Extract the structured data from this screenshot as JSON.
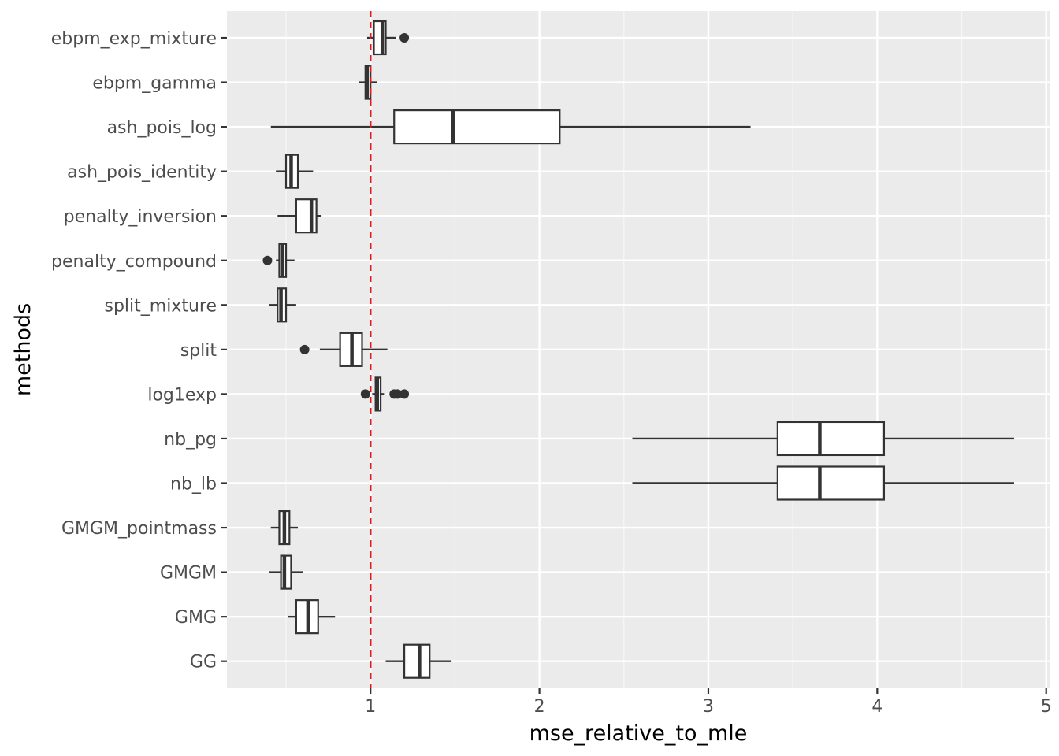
{
  "chart_data": {
    "type": "boxplot",
    "orientation": "horizontal",
    "xlabel": "mse_relative_to_mle",
    "ylabel": "methods",
    "xlim": [
      0.15,
      5.02
    ],
    "x_ticks": [
      1,
      2,
      3,
      4,
      5
    ],
    "x_minor_ticks": [
      0.5,
      1.5,
      2.5,
      3.5,
      4.5
    ],
    "grid": true,
    "reference_line": {
      "x": 1,
      "color": "#e31a1c",
      "style": "dashed"
    },
    "categories": [
      "ebpm_exp_mixture",
      "ebpm_gamma",
      "ash_pois_log",
      "ash_pois_identity",
      "penalty_inversion",
      "penalty_compound",
      "split_mixture",
      "split",
      "log1exp",
      "nb_pg",
      "nb_lb",
      "GMGM_pointmass",
      "GMGM",
      "GMG",
      "GG"
    ],
    "series": [
      {
        "name": "ebpm_exp_mixture",
        "whisker_low": 0.98,
        "q1": 1.02,
        "median": 1.07,
        "q3": 1.09,
        "whisker_high": 1.15,
        "outliers": [
          1.2
        ]
      },
      {
        "name": "ebpm_gamma",
        "whisker_low": 0.93,
        "q1": 0.97,
        "median": 0.98,
        "q3": 1.0,
        "whisker_high": 1.04,
        "outliers": []
      },
      {
        "name": "ash_pois_log",
        "whisker_low": 0.41,
        "q1": 1.14,
        "median": 1.49,
        "q3": 2.12,
        "whisker_high": 3.25,
        "outliers": []
      },
      {
        "name": "ash_pois_identity",
        "whisker_low": 0.44,
        "q1": 0.5,
        "median": 0.53,
        "q3": 0.57,
        "whisker_high": 0.66,
        "outliers": []
      },
      {
        "name": "penalty_inversion",
        "whisker_low": 0.45,
        "q1": 0.56,
        "median": 0.65,
        "q3": 0.68,
        "whisker_high": 0.71,
        "outliers": []
      },
      {
        "name": "penalty_compound",
        "whisker_low": 0.44,
        "q1": 0.46,
        "median": 0.48,
        "q3": 0.5,
        "whisker_high": 0.55,
        "outliers": [
          0.39
        ]
      },
      {
        "name": "split_mixture",
        "whisker_low": 0.4,
        "q1": 0.45,
        "median": 0.47,
        "q3": 0.5,
        "whisker_high": 0.56,
        "outliers": []
      },
      {
        "name": "split",
        "whisker_low": 0.7,
        "q1": 0.82,
        "median": 0.89,
        "q3": 0.95,
        "whisker_high": 1.1,
        "outliers": [
          0.61
        ]
      },
      {
        "name": "log1exp",
        "whisker_low": 1.01,
        "q1": 1.03,
        "median": 1.04,
        "q3": 1.06,
        "whisker_high": 1.08,
        "outliers": [
          0.97,
          1.14,
          1.16,
          1.2
        ]
      },
      {
        "name": "nb_pg",
        "whisker_low": 2.55,
        "q1": 3.41,
        "median": 3.66,
        "q3": 4.04,
        "whisker_high": 4.81,
        "outliers": []
      },
      {
        "name": "nb_lb",
        "whisker_low": 2.55,
        "q1": 3.41,
        "median": 3.66,
        "q3": 4.04,
        "whisker_high": 4.81,
        "outliers": []
      },
      {
        "name": "GMGM_pointmass",
        "whisker_low": 0.41,
        "q1": 0.46,
        "median": 0.49,
        "q3": 0.52,
        "whisker_high": 0.57,
        "outliers": []
      },
      {
        "name": "GMGM",
        "whisker_low": 0.4,
        "q1": 0.47,
        "median": 0.49,
        "q3": 0.53,
        "whisker_high": 0.6,
        "outliers": []
      },
      {
        "name": "GMG",
        "whisker_low": 0.51,
        "q1": 0.56,
        "median": 0.63,
        "q3": 0.69,
        "whisker_high": 0.79,
        "outliers": []
      },
      {
        "name": "GG",
        "whisker_low": 1.09,
        "q1": 1.2,
        "median": 1.29,
        "q3": 1.35,
        "whisker_high": 1.48,
        "outliers": []
      }
    ]
  }
}
